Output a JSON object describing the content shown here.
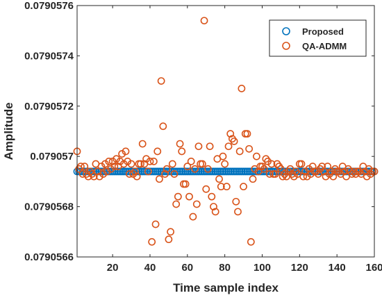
{
  "chart_data": {
    "type": "scatter",
    "xlabel": "Time sample index",
    "ylabel": "Amplitude",
    "xlim": [
      1,
      160
    ],
    "ylim": [
      0.0790566,
      0.0790576
    ],
    "xticks": [
      "20",
      "40",
      "60",
      "80",
      "100",
      "120",
      "140",
      "160"
    ],
    "yticks": [
      "0.0790566",
      "0.0790568",
      "0.079057",
      "0.0790572",
      "0.0790574",
      "0.0790576"
    ],
    "grid": false,
    "legend_position": "top-right",
    "series": [
      {
        "name": "Proposed",
        "color": "#0072BD",
        "marker": "open-circle",
        "x": [
          1,
          2,
          3,
          4,
          5,
          6,
          7,
          8,
          9,
          10,
          11,
          12,
          13,
          14,
          15,
          16,
          17,
          18,
          19,
          20,
          21,
          22,
          23,
          24,
          25,
          26,
          27,
          28,
          29,
          30,
          31,
          32,
          33,
          34,
          35,
          36,
          37,
          38,
          39,
          40,
          41,
          42,
          43,
          44,
          45,
          46,
          47,
          48,
          49,
          50,
          51,
          52,
          53,
          54,
          55,
          56,
          57,
          58,
          59,
          60,
          61,
          62,
          63,
          64,
          65,
          66,
          67,
          68,
          69,
          70,
          71,
          72,
          73,
          74,
          75,
          76,
          77,
          78,
          79,
          80,
          81,
          82,
          83,
          84,
          85,
          86,
          87,
          88,
          89,
          90,
          91,
          92,
          93,
          94,
          95,
          96,
          97,
          98,
          99,
          100,
          101,
          102,
          103,
          104,
          105,
          106,
          107,
          108,
          109,
          110,
          111,
          112,
          113,
          114,
          115,
          116,
          117,
          118,
          119,
          120,
          121,
          122,
          123,
          124,
          125,
          126,
          127,
          128,
          129,
          130,
          131,
          132,
          133,
          134,
          135,
          136,
          137,
          138,
          139,
          140,
          141,
          142,
          143,
          144,
          145,
          146,
          147,
          148,
          149,
          150,
          151,
          152,
          153,
          154,
          155,
          156,
          157,
          158,
          159,
          160
        ],
        "y_constant": 0.07905694
      },
      {
        "name": "QA-ADMM",
        "color": "#D95319",
        "marker": "open-circle",
        "x": [
          1,
          2,
          3,
          4,
          5,
          6,
          7,
          8,
          9,
          10,
          11,
          12,
          13,
          14,
          15,
          16,
          17,
          18,
          19,
          20,
          21,
          22,
          23,
          24,
          25,
          26,
          27,
          28,
          29,
          30,
          31,
          32,
          33,
          34,
          35,
          36,
          37,
          38,
          39,
          40,
          41,
          42,
          43,
          44,
          45,
          46,
          47,
          48,
          49,
          50,
          51,
          52,
          53,
          54,
          55,
          56,
          57,
          58,
          59,
          60,
          61,
          62,
          63,
          64,
          65,
          66,
          67,
          68,
          69,
          70,
          71,
          72,
          73,
          74,
          75,
          76,
          77,
          78,
          79,
          80,
          81,
          82,
          83,
          84,
          85,
          86,
          87,
          88,
          89,
          90,
          91,
          92,
          93,
          94,
          95,
          96,
          97,
          98,
          99,
          100,
          101,
          102,
          103,
          104,
          105,
          106,
          107,
          108,
          109,
          110,
          111,
          112,
          113,
          114,
          115,
          116,
          117,
          118,
          119,
          120,
          121,
          122,
          123,
          124,
          125,
          126,
          127,
          128,
          129,
          130,
          131,
          132,
          133,
          134,
          135,
          136,
          137,
          138,
          139,
          140,
          141,
          142,
          143,
          144,
          145,
          146,
          147,
          148,
          149,
          150,
          151,
          152,
          153,
          154,
          155,
          156,
          157,
          158,
          159,
          160
        ],
        "y": [
          0.07905702,
          0.07905695,
          0.07905696,
          0.07905693,
          0.07905696,
          0.07905693,
          0.07905692,
          0.07905694,
          0.07905693,
          0.07905692,
          0.07905697,
          0.07905694,
          0.07905692,
          0.07905696,
          0.07905693,
          0.07905697,
          0.07905694,
          0.07905698,
          0.07905695,
          0.07905698,
          0.07905696,
          0.07905699,
          0.07905696,
          0.07905698,
          0.07905701,
          0.07905697,
          0.07905702,
          0.07905698,
          0.07905693,
          0.07905697,
          0.07905693,
          0.07905694,
          0.07905692,
          0.07905697,
          0.07905697,
          0.07905705,
          0.07905697,
          0.07905699,
          0.07905694,
          0.07905698,
          0.07905666,
          0.07905698,
          0.07905673,
          0.07905702,
          0.07905691,
          0.0790573,
          0.07905712,
          0.07905693,
          0.07905695,
          0.07905667,
          0.0790567,
          0.07905697,
          0.07905693,
          0.07905681,
          0.07905684,
          0.07905705,
          0.07905702,
          0.07905689,
          0.07905689,
          0.07905696,
          0.07905684,
          0.07905698,
          0.07905676,
          0.07905695,
          0.07905681,
          0.07905704,
          0.07905697,
          0.07905697,
          0.07905754,
          0.07905687,
          0.07905695,
          0.07905704,
          0.07905684,
          0.0790568,
          0.07905678,
          0.07905699,
          0.07905691,
          0.07905688,
          0.079057,
          0.07905697,
          0.07905688,
          0.07905704,
          0.07905709,
          0.07905707,
          0.07905706,
          0.07905682,
          0.07905678,
          0.07905702,
          0.07905727,
          0.07905688,
          0.07905709,
          0.07905709,
          0.07905703,
          0.07905666,
          0.07905691,
          0.07905695,
          0.079057,
          0.07905694,
          0.07905696,
          0.07905696,
          0.07905695,
          0.07905699,
          0.07905698,
          0.07905693,
          0.07905697,
          0.07905693,
          0.07905693,
          0.07905697,
          0.07905696,
          0.07905695,
          0.07905692,
          0.07905693,
          0.07905692,
          0.07905694,
          0.07905695,
          0.07905693,
          0.07905692,
          0.07905694,
          0.07905693,
          0.07905697,
          0.07905697,
          0.07905692,
          0.07905694,
          0.07905692,
          0.07905695,
          0.07905693,
          0.07905696,
          0.07905694,
          0.07905694,
          0.07905693,
          0.07905695,
          0.07905696,
          0.07905694,
          0.07905692,
          0.07905696,
          0.07905693,
          0.07905694,
          0.07905692,
          0.07905695,
          0.07905694,
          0.07905694,
          0.07905693,
          0.07905696,
          0.07905694,
          0.07905692,
          0.07905695,
          0.07905694,
          0.07905693,
          0.07905694,
          0.07905693,
          0.07905694,
          0.07905694,
          0.07905693,
          0.07905696,
          0.07905694,
          0.07905692,
          0.07905695,
          0.07905693,
          0.07905694,
          0.07905694
        ]
      }
    ]
  }
}
